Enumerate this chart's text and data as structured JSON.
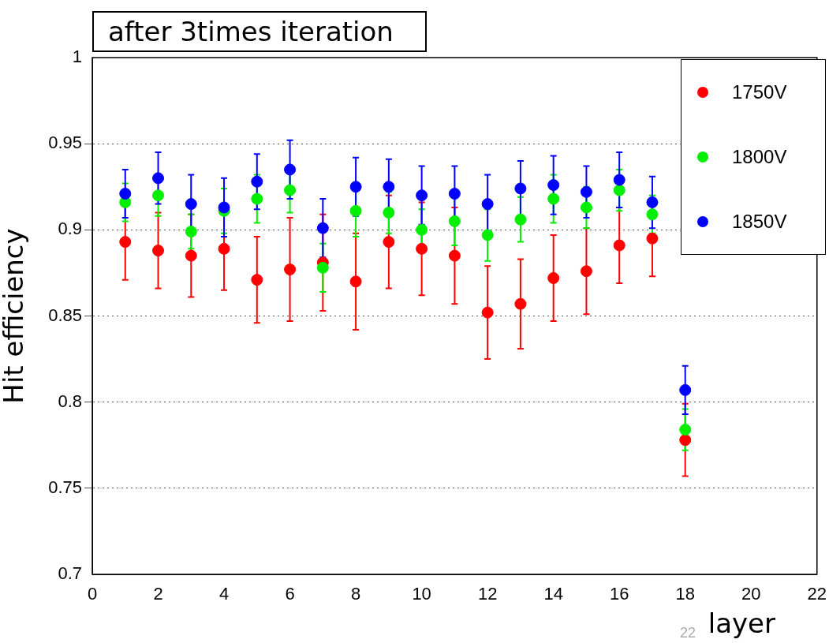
{
  "chart_data": {
    "type": "scatter",
    "title": "after 3times iteration",
    "xlabel": "layer",
    "ylabel": "Hit efficiency",
    "x": [
      1,
      2,
      3,
      4,
      5,
      6,
      7,
      8,
      9,
      10,
      11,
      12,
      13,
      14,
      15,
      16,
      17,
      18
    ],
    "series": [
      {
        "name": "1750V",
        "color": "#ff0000",
        "values": [
          0.893,
          0.888,
          0.885,
          0.889,
          0.871,
          0.877,
          0.881,
          0.87,
          0.893,
          0.889,
          0.885,
          0.852,
          0.857,
          0.872,
          0.876,
          0.891,
          0.895,
          0.778
        ],
        "errors": [
          0.022,
          0.022,
          0.024,
          0.024,
          0.025,
          0.03,
          0.028,
          0.028,
          0.027,
          0.027,
          0.028,
          0.027,
          0.026,
          0.025,
          0.025,
          0.022,
          0.022,
          0.021
        ]
      },
      {
        "name": "1800V",
        "color": "#00ee00",
        "values": [
          0.916,
          0.92,
          0.899,
          0.911,
          0.918,
          0.923,
          0.878,
          0.911,
          0.91,
          0.9,
          0.905,
          0.897,
          0.906,
          0.918,
          0.913,
          0.923,
          0.909,
          0.784
        ],
        "errors": [
          0.011,
          0.012,
          0.01,
          0.013,
          0.014,
          0.013,
          0.014,
          0.015,
          0.012,
          0.012,
          0.014,
          0.015,
          0.013,
          0.014,
          0.012,
          0.012,
          0.011,
          0.012
        ]
      },
      {
        "name": "1850V",
        "color": "#0000ff",
        "values": [
          0.921,
          0.93,
          0.915,
          0.913,
          0.928,
          0.935,
          0.901,
          0.925,
          0.925,
          0.92,
          0.921,
          0.915,
          0.924,
          0.926,
          0.922,
          0.929,
          0.916,
          0.807
        ],
        "errors": [
          0.014,
          0.015,
          0.017,
          0.017,
          0.016,
          0.017,
          0.017,
          0.017,
          0.016,
          0.017,
          0.016,
          0.017,
          0.016,
          0.017,
          0.015,
          0.016,
          0.015,
          0.014
        ]
      }
    ],
    "xlim": [
      0,
      22
    ],
    "xticks": [
      0,
      2,
      4,
      6,
      8,
      10,
      12,
      14,
      16,
      18,
      20,
      22
    ],
    "ylim": [
      0.7,
      1
    ],
    "yticks": [
      0.7,
      0.75,
      0.8,
      0.85,
      0.9,
      0.95,
      1
    ],
    "grid": "y",
    "legend": "top right",
    "marker": "circle",
    "annotations": [
      "22"
    ]
  }
}
